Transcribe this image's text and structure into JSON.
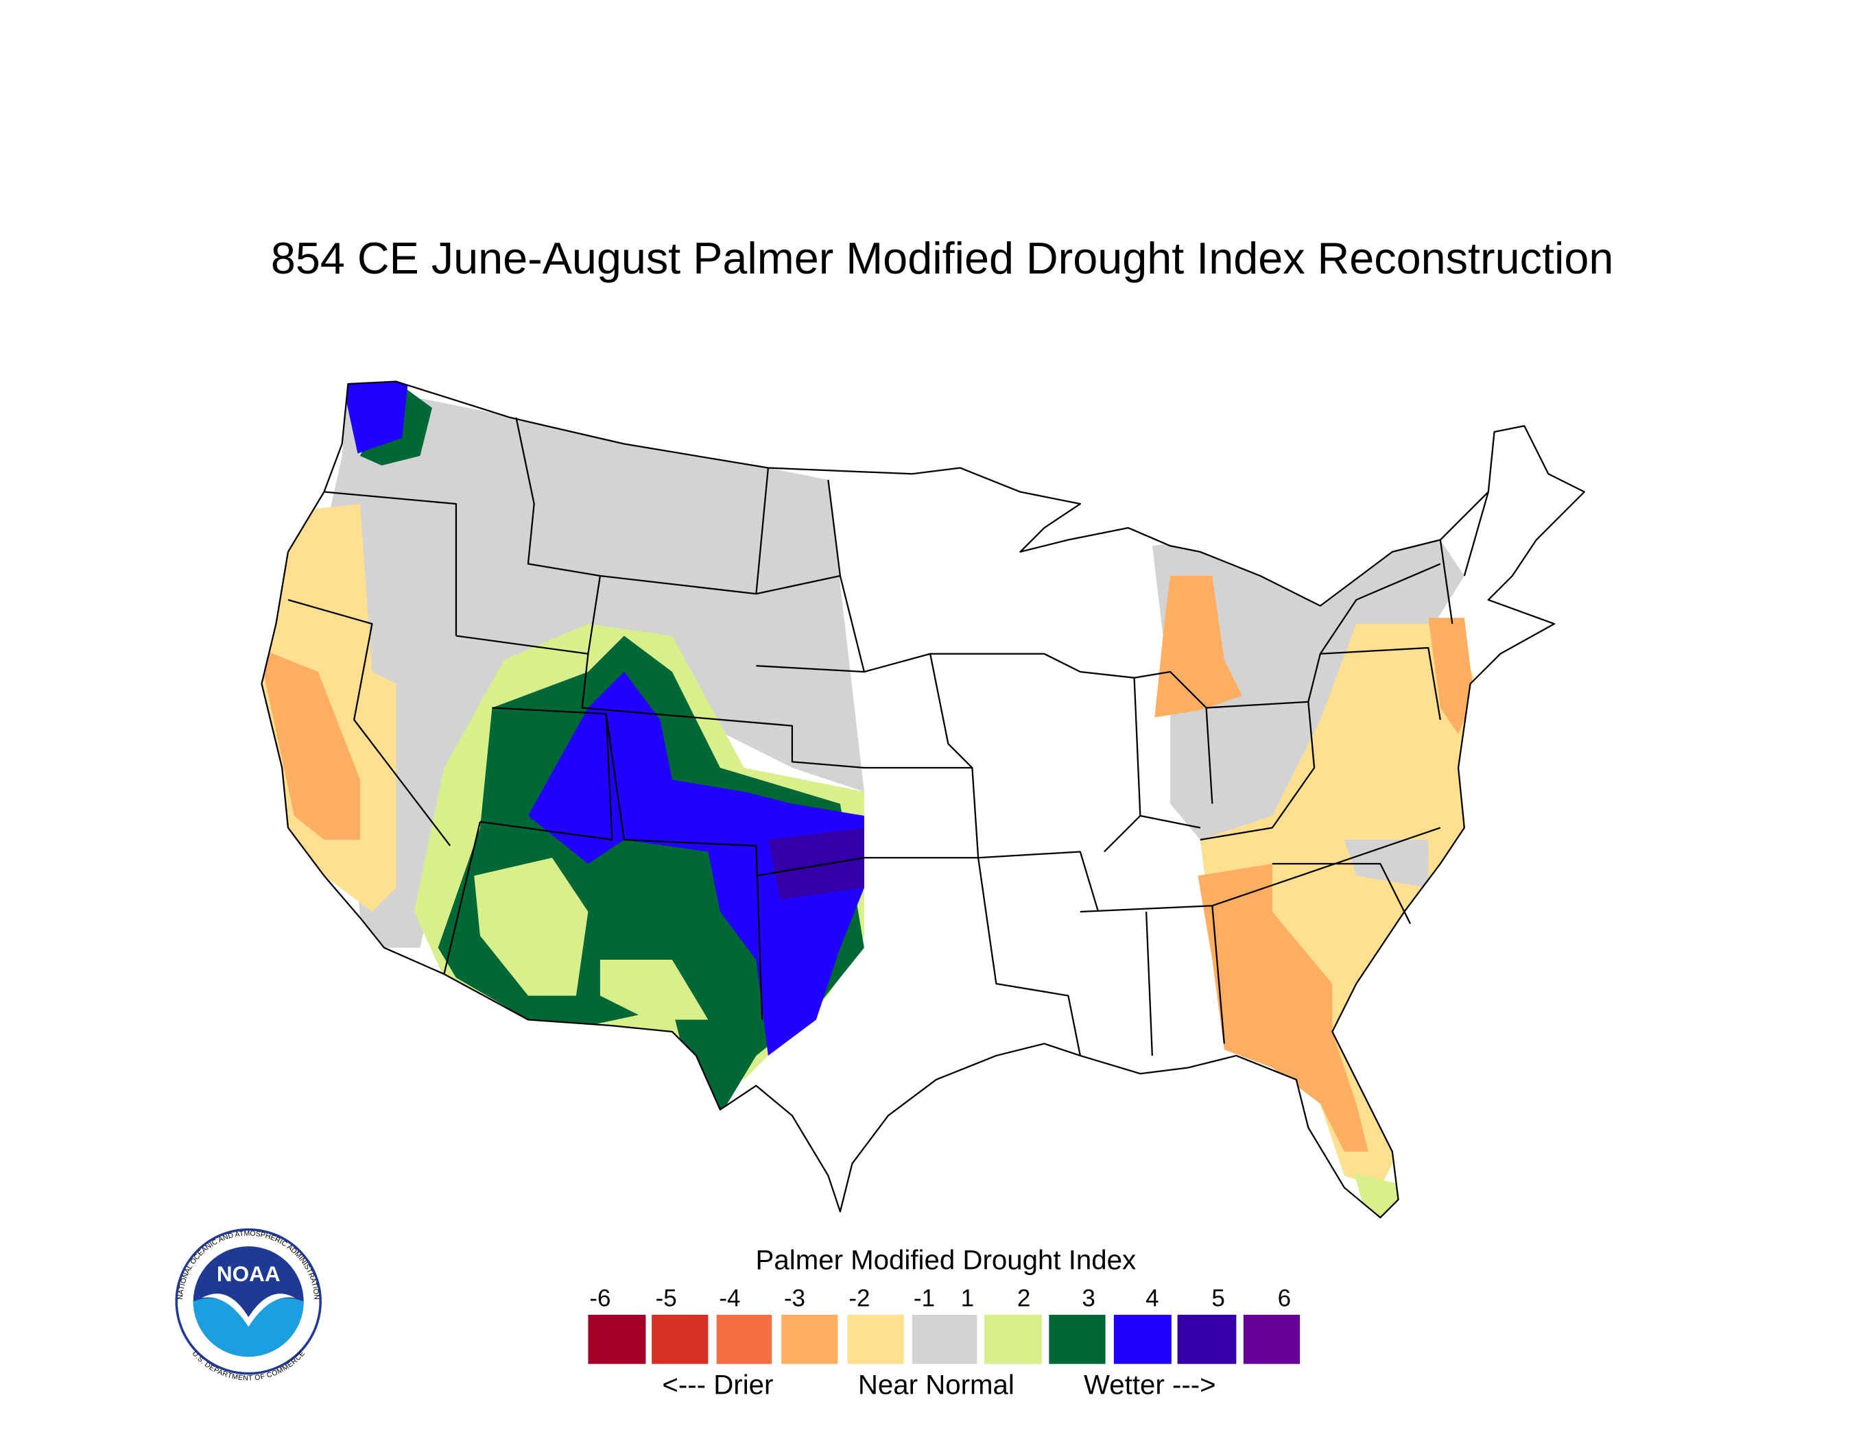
{
  "title": "854 CE  June-August  Palmer Modified Drought Index Reconstruction",
  "logo": {
    "name": "NOAA",
    "top_text": "NATIONAL OCEANIC AND ATMOSPHERIC ADMINISTRATION",
    "bottom_text": "U.S. DEPARTMENT OF COMMERCE"
  },
  "legend": {
    "title": "Palmer Modified Drought Index",
    "ticks": [
      -6,
      -5,
      -4,
      -3,
      -2,
      -1,
      1,
      2,
      3,
      4,
      5,
      6
    ],
    "colors": [
      "#a50026",
      "#d73027",
      "#f46d43",
      "#fdae61",
      "#fee090",
      "#d3d3d3",
      "#d9ef8b",
      "#006837",
      "#2200ff",
      "#3300aa",
      "#660099"
    ],
    "labels": [
      "<--- Drier",
      "Near Normal",
      "Wetter --->"
    ]
  }
}
